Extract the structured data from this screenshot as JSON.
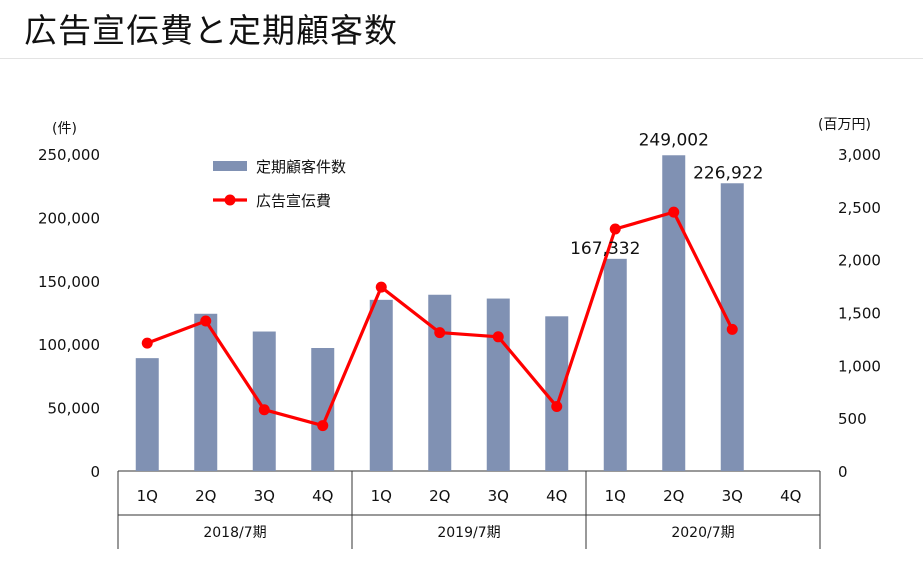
{
  "page": {
    "title": "広告宣伝費と定期顧客数"
  },
  "chart_data": {
    "type": "bar+line",
    "title": "広告宣伝費と定期顧客数",
    "left_axis": {
      "unit": "(件)",
      "ylim": [
        0,
        250000
      ],
      "ticks": [
        0,
        50000,
        100000,
        150000,
        200000,
        250000
      ],
      "tick_labels": [
        "0",
        "50,000",
        "100,000",
        "150,000",
        "200,000",
        "250,000"
      ]
    },
    "right_axis": {
      "unit": "(百万円)",
      "ylim": [
        0,
        3000
      ],
      "ticks": [
        0,
        500,
        1000,
        1500,
        2000,
        2500,
        3000
      ],
      "tick_labels": [
        "0",
        "500",
        "1,000",
        "1,500",
        "2,000",
        "2,500",
        "3,000"
      ]
    },
    "categories": [
      "1Q",
      "2Q",
      "3Q",
      "4Q",
      "1Q",
      "2Q",
      "3Q",
      "4Q",
      "1Q",
      "2Q",
      "3Q",
      "4Q"
    ],
    "groups": [
      {
        "label": "2018/7期",
        "span": 4
      },
      {
        "label": "2019/7期",
        "span": 4
      },
      {
        "label": "2020/7期",
        "span": 4
      }
    ],
    "series": [
      {
        "name": "定期顧客件数",
        "type": "bar",
        "axis": "left",
        "color": "#8091b3",
        "values": [
          89000,
          124000,
          110000,
          97000,
          135000,
          139000,
          136000,
          122000,
          167332,
          249002,
          226922,
          null
        ]
      },
      {
        "name": "広告宣伝費",
        "type": "line",
        "axis": "right",
        "color": "#ff0000",
        "values": [
          1210,
          1420,
          580,
          430,
          1740,
          1310,
          1270,
          610,
          2290,
          2450,
          1340,
          null
        ]
      }
    ],
    "data_labels": [
      {
        "index": 8,
        "text": "167,332"
      },
      {
        "index": 9,
        "text": "249,002"
      },
      {
        "index": 10,
        "text": "226,922"
      }
    ],
    "legend": {
      "placement": "top-left"
    },
    "grid": false
  }
}
